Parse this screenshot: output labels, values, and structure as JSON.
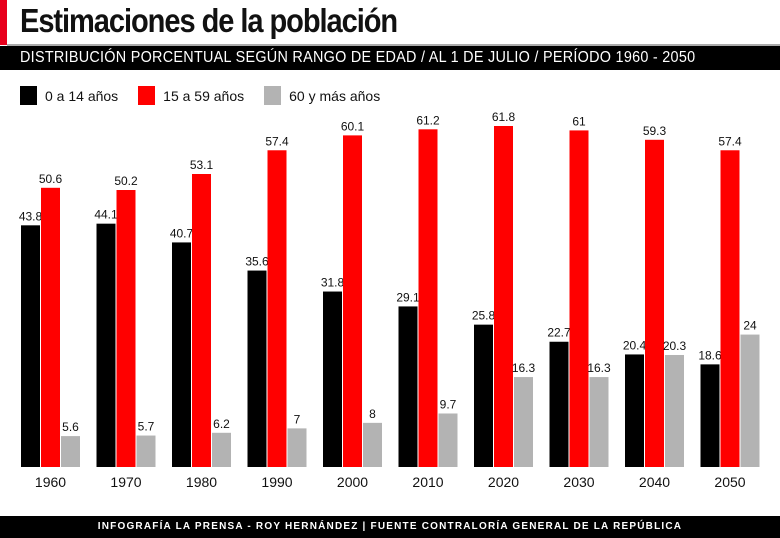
{
  "header": {
    "title": "Estimaciones de la población",
    "subtitle": "DISTRIBUCIÓN PORCENTUAL SEGÚN RANGO DE EDAD / AL 1 DE JULIO / PERÍODO 1960 - 2050"
  },
  "footer": {
    "credit": "INFOGRAFÍA LA PRENSA - ROY HERNÁNDEZ | FUENTE CONTRALORÍA GENERAL DE LA REPÚBLICA"
  },
  "colors": {
    "accent": "#e8001c",
    "series": [
      "#000000",
      "#ff0000",
      "#b3b3b3"
    ]
  },
  "chart_data": {
    "type": "bar",
    "title": "Estimaciones de la población",
    "subtitle": "DISTRIBUCIÓN PORCENTUAL SEGÚN RANGO DE EDAD / AL 1 DE JULIO / PERÍODO 1960 - 2050",
    "categories": [
      "1960",
      "1970",
      "1980",
      "1990",
      "2000",
      "2010",
      "2020",
      "2030",
      "2040",
      "2050"
    ],
    "series": [
      {
        "name": "0 a 14 años",
        "color": "#000000",
        "values": [
          43.8,
          44.1,
          40.7,
          35.6,
          31.8,
          29.1,
          25.8,
          22.7,
          20.4,
          18.6
        ],
        "labels": [
          "43.8",
          "44.1",
          "40.7",
          "35.6",
          "31.8",
          "29.1",
          "25.8",
          "22.7",
          "20.4",
          "18.6"
        ]
      },
      {
        "name": "15 a 59 años",
        "color": "#ff0000",
        "values": [
          50.6,
          50.2,
          53.1,
          57.4,
          60.1,
          61.2,
          61.8,
          61,
          59.3,
          57.4
        ],
        "labels": [
          "50.6",
          "50.2",
          "53.1",
          "57.4",
          "60.1",
          "61.2",
          "61.8",
          "61",
          "59.3",
          "57.4"
        ]
      },
      {
        "name": "60 y más años",
        "color": "#b3b3b3",
        "values": [
          5.6,
          5.7,
          6.2,
          7,
          8,
          9.7,
          16.3,
          16.3,
          20.3,
          24
        ],
        "labels": [
          "5.6",
          "5.7",
          "6.2",
          "7",
          "8",
          "9.7",
          "16.3",
          "16.3",
          "20.3",
          "24"
        ]
      }
    ],
    "legend": "top-left",
    "grid": false,
    "axes": false,
    "ylim": [
      0,
      62
    ]
  }
}
